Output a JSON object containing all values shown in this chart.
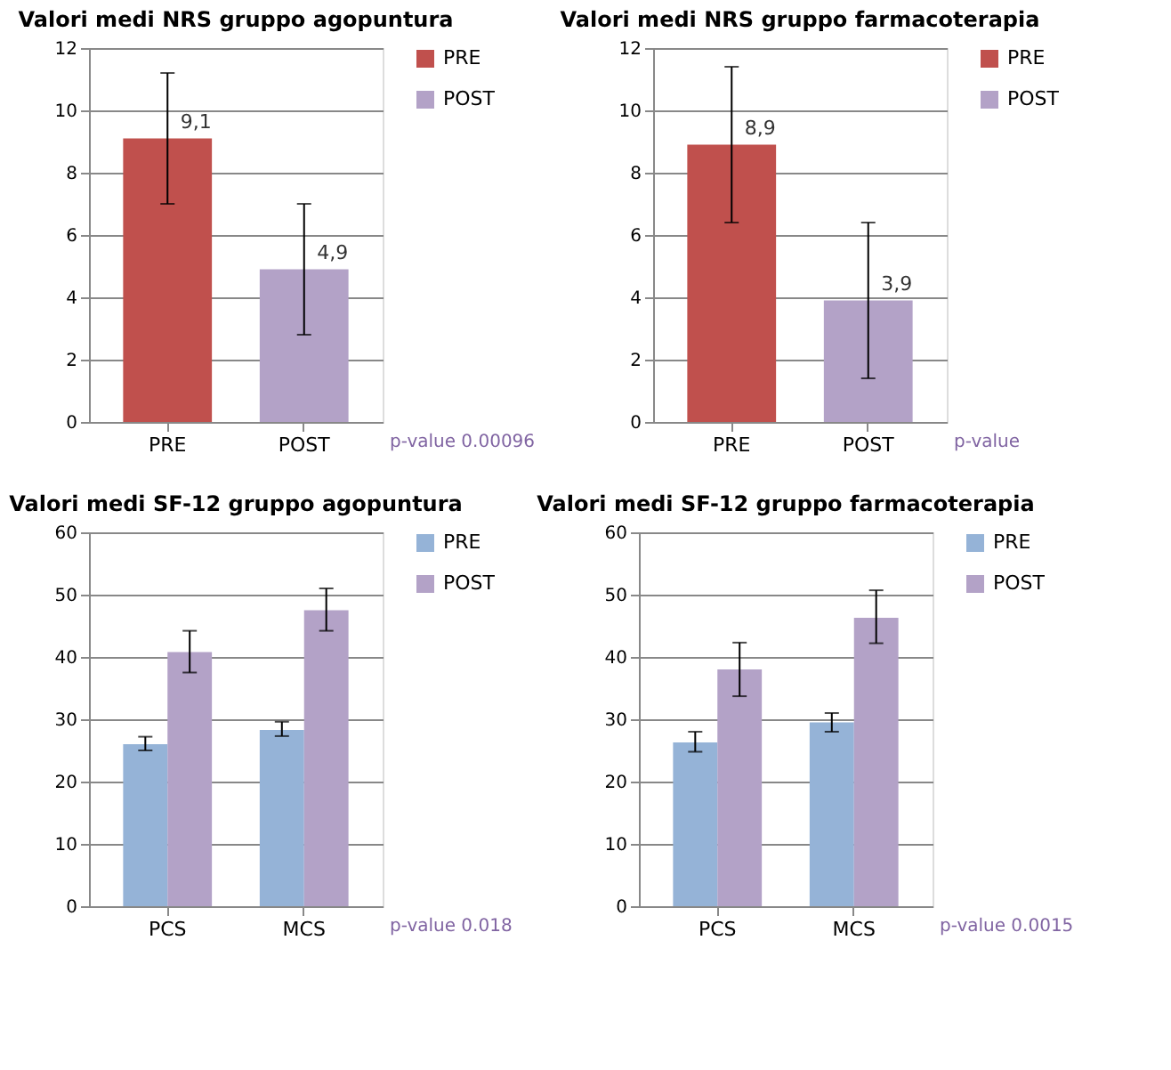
{
  "chart_data": [
    {
      "type": "bar",
      "title": "Valori medi NRS gruppo agopuntura",
      "categories": [
        "PRE",
        "POST"
      ],
      "series": [
        {
          "name": "PRE",
          "color": "#c0504d",
          "values": [
            9.1,
            null
          ],
          "errors": [
            [
              7.0,
              11.2
            ],
            null
          ],
          "value_labels": [
            "9,1",
            null
          ]
        },
        {
          "name": "POST",
          "color": "#b3a2c7",
          "values": [
            null,
            4.9
          ],
          "errors": [
            null,
            [
              2.8,
              7.0
            ]
          ],
          "value_labels": [
            null,
            "4,9"
          ]
        }
      ],
      "ylim": [
        0,
        12
      ],
      "yticks": [
        0,
        2,
        4,
        6,
        8,
        10,
        12
      ],
      "grid": "y",
      "legend": "right",
      "annotations": [
        "p-value 0.00096"
      ]
    },
    {
      "type": "bar",
      "title": "Valori medi NRS gruppo farmacoterapia",
      "categories": [
        "PRE",
        "POST"
      ],
      "series": [
        {
          "name": "PRE",
          "color": "#c0504d",
          "values": [
            8.9,
            null
          ],
          "errors": [
            [
              6.4,
              11.4
            ],
            null
          ],
          "value_labels": [
            "8,9",
            null
          ]
        },
        {
          "name": "POST",
          "color": "#b3a2c7",
          "values": [
            null,
            3.9
          ],
          "errors": [
            null,
            [
              1.4,
              6.4
            ]
          ],
          "value_labels": [
            null,
            "3,9"
          ]
        }
      ],
      "ylim": [
        0,
        12
      ],
      "yticks": [
        0,
        2,
        4,
        6,
        8,
        10,
        12
      ],
      "grid": "y",
      "legend": "right",
      "annotations": [
        "p-value"
      ]
    },
    {
      "type": "bar",
      "title": "Valori medi SF-12 gruppo agopuntura",
      "categories": [
        "PCS",
        "MCS"
      ],
      "series": [
        {
          "name": "PRE",
          "color": "#95b3d7",
          "values": [
            26.0,
            28.3
          ],
          "errors": [
            [
              25.0,
              27.2
            ],
            [
              27.3,
              29.6
            ]
          ]
        },
        {
          "name": "POST",
          "color": "#b3a2c7",
          "values": [
            40.8,
            47.5
          ],
          "errors": [
            [
              37.5,
              44.2
            ],
            [
              44.2,
              51.0
            ]
          ]
        }
      ],
      "ylim": [
        0,
        60
      ],
      "yticks": [
        0,
        10,
        20,
        30,
        40,
        50,
        60
      ],
      "grid": "y",
      "legend": "right",
      "annotations": [
        "p-value 0.018"
      ]
    },
    {
      "type": "bar",
      "title": "Valori medi SF-12 gruppo farmacoterapia",
      "categories": [
        "PCS",
        "MCS"
      ],
      "series": [
        {
          "name": "PRE",
          "color": "#95b3d7",
          "values": [
            26.3,
            29.5
          ],
          "errors": [
            [
              24.8,
              28.0
            ],
            [
              28.0,
              31.0
            ]
          ]
        },
        {
          "name": "POST",
          "color": "#b3a2c7",
          "values": [
            38.0,
            46.3
          ],
          "errors": [
            [
              33.7,
              42.3
            ],
            [
              42.2,
              50.7
            ]
          ]
        }
      ],
      "ylim": [
        0,
        60
      ],
      "yticks": [
        0,
        10,
        20,
        30,
        40,
        50,
        60
      ],
      "grid": "y",
      "legend": "right",
      "annotations": [
        "p-value 0.0015"
      ]
    }
  ]
}
